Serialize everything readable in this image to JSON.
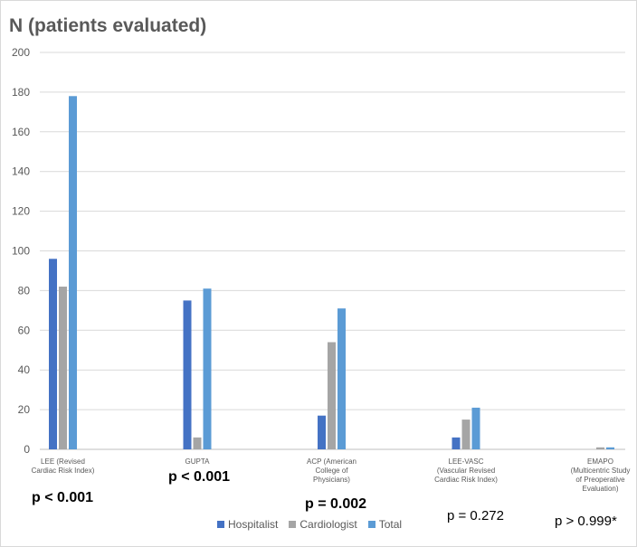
{
  "chart_data": {
    "type": "bar",
    "title": "N (patients evaluated)",
    "xlabel": "",
    "ylabel": "",
    "ylim": [
      0,
      200
    ],
    "yticks": [
      0,
      20,
      40,
      60,
      80,
      100,
      120,
      140,
      160,
      180,
      200
    ],
    "grid": true,
    "legend_position": "bottom",
    "categories": [
      "LEE (Revised Cardiac Risk Index)",
      "GUPTA",
      "ACP (American College of Physicians)",
      "LEE-VASC (Vascular Revised Cardiac Risk Index)",
      "EMAPO (Multicentric Study of Preoperative Evaluation)"
    ],
    "series": [
      {
        "name": "Hospitalist",
        "color": "#4472c4",
        "values": [
          96,
          75,
          17,
          6,
          0
        ]
      },
      {
        "name": "Cardiologist",
        "color": "#a5a5a5",
        "values": [
          82,
          6,
          54,
          15,
          1
        ]
      },
      {
        "name": "Total",
        "color": "#5b9bd5",
        "values": [
          178,
          81,
          71,
          21,
          1
        ]
      }
    ],
    "annotations": [
      {
        "text": "p < 0.001",
        "bold": true
      },
      {
        "text": "p < 0.001",
        "bold": true
      },
      {
        "text": "p = 0.002",
        "bold": true
      },
      {
        "text": "p = 0.272",
        "bold": false
      },
      {
        "text": "p > 0.999*",
        "bold": false
      }
    ]
  }
}
